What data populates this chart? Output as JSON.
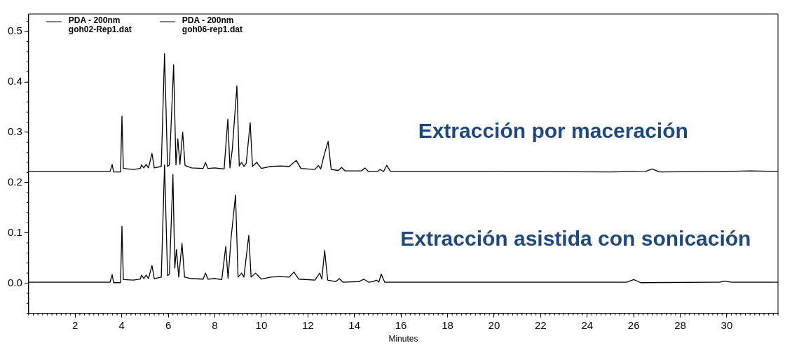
{
  "chart_data": {
    "type": "line",
    "xlabel": "Minutes",
    "xlim": [
      0,
      32.2
    ],
    "xticks": [
      2,
      4,
      6,
      8,
      10,
      12,
      14,
      16,
      18,
      20,
      22,
      24,
      26,
      28,
      30
    ],
    "ylim": [
      -0.06,
      0.535
    ],
    "yticks": [
      {
        "value": 0,
        "label": "0.0"
      },
      {
        "value": 0.1,
        "label": "0.1"
      },
      {
        "value": 0.2,
        "label": "0.2"
      },
      {
        "value": 0.3,
        "label": "0.3"
      },
      {
        "value": 0.4,
        "label": "0.4"
      },
      {
        "value": 0.5,
        "label": "0.5"
      }
    ],
    "grid": false,
    "legend": "top left",
    "marker": "none",
    "line_style": "solid",
    "annotations": [
      "Extracción por maceración",
      "Extracción asistida con sonicación"
    ],
    "series": [
      {
        "name": "PDA - 200nm\ngoh02-Rep1.dat",
        "color": "#000000",
        "x": [
          0,
          3.5,
          3.59,
          3.65,
          3.95,
          4.01,
          4.07,
          4.5,
          4.8,
          4.85,
          4.95,
          5.05,
          5.15,
          5.3,
          5.4,
          5.7,
          5.84,
          5.97,
          6.05,
          6.23,
          6.33,
          6.41,
          6.5,
          6.62,
          6.72,
          7.0,
          7.5,
          7.6,
          7.7,
          8.0,
          8.4,
          8.56,
          8.65,
          8.75,
          8.95,
          9.05,
          9.15,
          9.25,
          9.35,
          9.52,
          9.62,
          9.8,
          10.0,
          10.4,
          10.8,
          11.2,
          11.5,
          11.7,
          12.3,
          12.45,
          12.55,
          12.7,
          12.87,
          13.0,
          13.3,
          13.45,
          13.6,
          14.3,
          14.45,
          14.6,
          15.0,
          15.1,
          15.25,
          15.39,
          15.55,
          20,
          25,
          26.5,
          26.8,
          27.1,
          30,
          31,
          32.2
        ],
        "values": [
          0.222,
          0.222,
          0.236,
          0.221,
          0.221,
          0.332,
          0.228,
          0.226,
          0.228,
          0.235,
          0.229,
          0.236,
          0.229,
          0.258,
          0.229,
          0.232,
          0.456,
          0.232,
          0.235,
          0.434,
          0.235,
          0.287,
          0.236,
          0.3,
          0.234,
          0.229,
          0.228,
          0.24,
          0.228,
          0.229,
          0.227,
          0.326,
          0.229,
          0.265,
          0.392,
          0.233,
          0.24,
          0.232,
          0.238,
          0.319,
          0.232,
          0.24,
          0.228,
          0.232,
          0.233,
          0.232,
          0.244,
          0.228,
          0.226,
          0.234,
          0.227,
          0.255,
          0.282,
          0.226,
          0.224,
          0.23,
          0.223,
          0.223,
          0.229,
          0.222,
          0.222,
          0.226,
          0.222,
          0.234,
          0.222,
          0.222,
          0.221,
          0.222,
          0.227,
          0.221,
          0.222,
          0.223,
          0.222
        ]
      },
      {
        "name": "PDA - 200nm\ngoh06-rep1.dat",
        "color": "#000000",
        "x": [
          0,
          3.5,
          3.59,
          3.65,
          3.95,
          4.01,
          4.07,
          4.5,
          4.8,
          4.85,
          4.95,
          5.05,
          5.15,
          5.3,
          5.4,
          5.7,
          5.84,
          5.97,
          6.05,
          6.2,
          6.28,
          6.35,
          6.45,
          6.59,
          6.7,
          7.0,
          7.5,
          7.6,
          7.7,
          8.0,
          8.3,
          8.47,
          8.57,
          8.7,
          8.89,
          9.0,
          9.15,
          9.25,
          9.46,
          9.56,
          9.75,
          10.0,
          10.4,
          10.8,
          11.2,
          11.4,
          11.6,
          12.3,
          12.51,
          12.6,
          12.72,
          12.85,
          13.2,
          13.35,
          13.5,
          14.2,
          14.4,
          14.6,
          14.8,
          14.95,
          15.05,
          15.15,
          15.3,
          20,
          25.7,
          26.0,
          26.3,
          29.7,
          29.9,
          30.2,
          32.2
        ],
        "values": [
          0.002,
          0.002,
          0.017,
          0.001,
          0.001,
          0.113,
          0.007,
          0.006,
          0.008,
          0.016,
          0.009,
          0.016,
          0.009,
          0.035,
          0.009,
          0.012,
          0.235,
          0.015,
          0.018,
          0.216,
          0.03,
          0.067,
          0.012,
          0.079,
          0.012,
          0.009,
          0.008,
          0.02,
          0.008,
          0.009,
          0.007,
          0.073,
          0.009,
          0.09,
          0.175,
          0.012,
          0.02,
          0.012,
          0.095,
          0.012,
          0.02,
          0.008,
          0.012,
          0.013,
          0.012,
          0.022,
          0.008,
          0.006,
          0.02,
          0.008,
          0.065,
          0.006,
          0.003,
          0.009,
          0.002,
          0.003,
          0.008,
          0.002,
          0.003,
          0.006,
          0.002,
          0.018,
          0.002,
          0.002,
          0.002,
          0.007,
          0.001,
          0.002,
          0.004,
          0.002,
          0.002
        ]
      }
    ]
  }
}
